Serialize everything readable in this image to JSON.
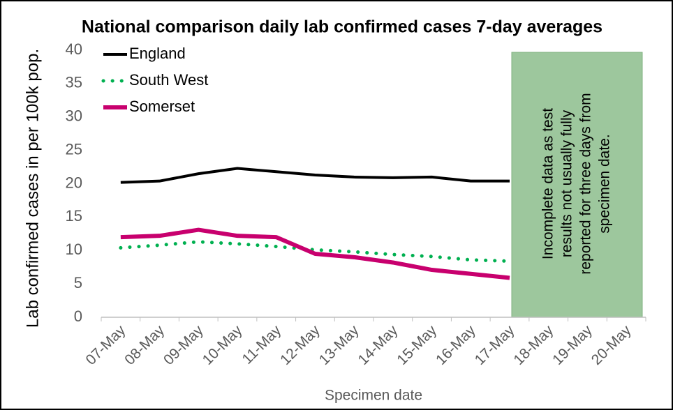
{
  "chart_data": {
    "type": "line",
    "title": "National comparison daily lab confirmed cases 7-day averages",
    "y_label": "Lab confirmed cases in per 100k pop.",
    "x_label": "Specimen date",
    "annotation": [
      "Incomplete data as test",
      "results not usually fully",
      "reported for three days from",
      "specimen date."
    ],
    "categories": [
      "07-May",
      "08-May",
      "09-May",
      "10-May",
      "11-May",
      "12-May",
      "13-May",
      "14-May",
      "15-May",
      "16-May",
      "17-May",
      "18-May",
      "19-May",
      "20-May"
    ],
    "series": [
      {
        "name": "England",
        "color": "#000000",
        "style": "solid",
        "values": [
          20.2,
          20.4,
          21.5,
          22.3,
          21.8,
          21.3,
          21.0,
          20.9,
          21.0,
          20.4,
          20.4,
          null,
          null,
          null
        ]
      },
      {
        "name": "South West",
        "color": "#00b050",
        "style": "dotted",
        "values": [
          10.4,
          10.8,
          11.3,
          11.0,
          10.6,
          10.1,
          9.8,
          9.4,
          9.1,
          8.6,
          8.4,
          null,
          null,
          null
        ]
      },
      {
        "name": "Somerset",
        "color": "#c8006e",
        "style": "solid-thick",
        "values": [
          12.0,
          12.2,
          13.1,
          12.2,
          12.0,
          9.5,
          9.0,
          8.2,
          7.1,
          6.5,
          5.9,
          null,
          null,
          null
        ]
      }
    ],
    "ylim": [
      0,
      40
    ],
    "yticks": [
      0,
      5,
      10,
      15,
      20,
      25,
      30,
      35,
      40
    ],
    "grid": false,
    "legend": "top-left"
  }
}
